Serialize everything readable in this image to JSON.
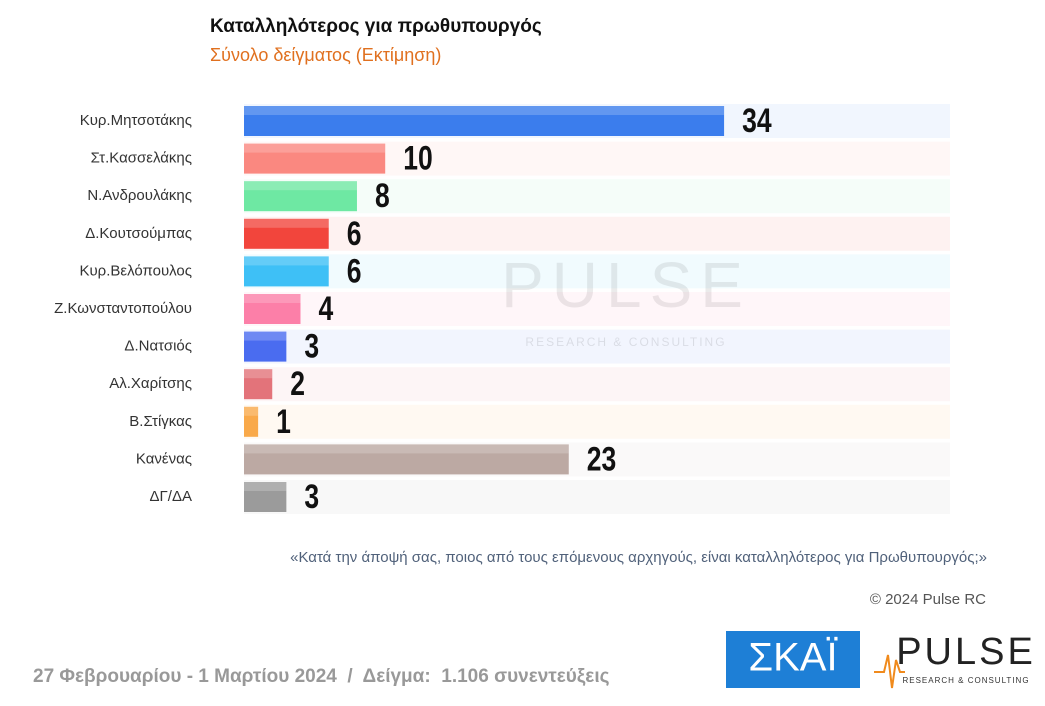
{
  "chart_data": {
    "type": "bar",
    "title": "Καταλληλότερος για πρωθυπουργός",
    "subtitle": "Σύνολο δείγματος   (Εκτίμηση)",
    "categories": [
      "Κυρ.Μητσοτάκης",
      "Στ.Κασσελάκης",
      "Ν.Ανδρουλάκης",
      "Δ.Κουτσούμπας",
      "Κυρ.Βελόπουλος",
      "Ζ.Κωνσταντοπούλου",
      "Δ.Νατσιός",
      "Αλ.Χαρίτσης",
      "Β.Στίγκας",
      "Κανένας",
      "ΔΓ/ΔΑ"
    ],
    "values": [
      34,
      10,
      8,
      6,
      6,
      4,
      3,
      2,
      1,
      23,
      3
    ],
    "colors": [
      "#3b7ded",
      "#fa8880",
      "#6ee8a3",
      "#f2453c",
      "#3ec0f6",
      "#fc7fa8",
      "#4a6cf0",
      "#e3737a",
      "#f9a94a",
      "#bca9a3",
      "#9b9b9b"
    ],
    "xlim": [
      0,
      50
    ],
    "question": "«Κατά την άποψή σας, ποιος από τους επόμενους αρχηγούς, είναι καταλληλότερος για Πρωθυπουργός;»",
    "copyright": "© 2024 Pulse RC",
    "footer": "27 Φεβρουαρίου - 1 Μαρτίου 2024  /  Δείγμα:  1.106 συνεντεύξεις",
    "watermark": [
      "PULSE",
      "RESEARCH & CONSULTING"
    ],
    "logos": [
      "ΣΚΑΪ",
      "PULSE",
      "RESEARCH & CONSULTING"
    ]
  }
}
